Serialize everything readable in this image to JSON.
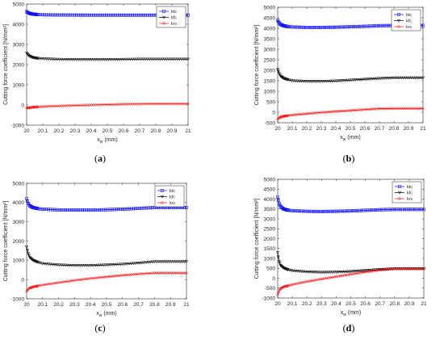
{
  "chart_data": [
    {
      "type": "line",
      "panel_label": "(a)",
      "xlabel": "x_w (mm)",
      "ylabel": "Cutting force coefficient [N/mm²]",
      "xlim": [
        20,
        21
      ],
      "ylim": [
        -1000,
        5000
      ],
      "x_ticks": [
        "20",
        "20.1",
        "20.2",
        "20.3",
        "20.4",
        "20.5",
        "20.6",
        "20.7",
        "20.8",
        "20.9",
        "21"
      ],
      "y_ticks": [
        "-1000",
        "0",
        "1000",
        "2000",
        "3000",
        "4000",
        "5000"
      ],
      "legend_position": "top-right",
      "grid": false,
      "series": [
        {
          "name": "ktc",
          "color": "#0000ff",
          "marker": "square",
          "x": [
            20.0,
            20.01,
            20.02,
            20.04,
            20.07,
            20.1,
            20.2,
            20.3,
            20.4,
            20.5,
            20.6,
            20.7,
            20.8,
            20.9,
            21.0
          ],
          "y": [
            4620,
            4570,
            4530,
            4500,
            4480,
            4470,
            4460,
            4455,
            4450,
            4450,
            4450,
            4450,
            4450,
            4450,
            4450
          ]
        },
        {
          "name": "kfc",
          "color": "#000000",
          "marker": "triangle-down",
          "x": [
            20.0,
            20.01,
            20.02,
            20.04,
            20.07,
            20.1,
            20.2,
            20.3,
            20.4,
            20.5,
            20.6,
            20.7,
            20.8,
            20.9,
            21.0
          ],
          "y": [
            2580,
            2480,
            2410,
            2350,
            2310,
            2290,
            2260,
            2250,
            2250,
            2250,
            2260,
            2270,
            2270,
            2270,
            2270
          ]
        },
        {
          "name": "krc",
          "color": "#ff0000",
          "marker": "diamond",
          "x": [
            20.0,
            20.01,
            20.02,
            20.04,
            20.07,
            20.1,
            20.2,
            20.3,
            20.4,
            20.5,
            20.6,
            20.7,
            20.8,
            20.9,
            21.0
          ],
          "y": [
            -150,
            -140,
            -130,
            -110,
            -90,
            -80,
            -50,
            -20,
            0,
            20,
            40,
            50,
            60,
            60,
            60
          ]
        }
      ]
    },
    {
      "type": "line",
      "panel_label": "(b)",
      "xlabel": "x_w (mm)",
      "ylabel": "Cutting force coefficient [N/mm²]",
      "xlim": [
        20,
        21
      ],
      "ylim": [
        -500,
        5000
      ],
      "x_ticks": [
        "20",
        "20.1",
        "20.2",
        "20.3",
        "20.4",
        "20.5",
        "20.6",
        "20.7",
        "20.8",
        "20.9",
        "21"
      ],
      "y_ticks": [
        "-500",
        "0",
        "500",
        "1000",
        "1500",
        "2000",
        "2500",
        "3000",
        "3500",
        "4000",
        "4500",
        "5000"
      ],
      "legend_position": "top-right",
      "grid": false,
      "series": [
        {
          "name": "ktc",
          "color": "#0000ff",
          "marker": "square",
          "x": [
            20.0,
            20.01,
            20.02,
            20.04,
            20.07,
            20.1,
            20.2,
            20.3,
            20.4,
            20.5,
            20.6,
            20.7,
            20.8,
            20.9,
            21.0
          ],
          "y": [
            4380,
            4250,
            4180,
            4120,
            4080,
            4060,
            4040,
            4040,
            4050,
            4070,
            4090,
            4120,
            4130,
            4130,
            4130
          ]
        },
        {
          "name": "kfc",
          "color": "#000000",
          "marker": "triangle-down",
          "x": [
            20.0,
            20.01,
            20.02,
            20.04,
            20.07,
            20.1,
            20.2,
            20.3,
            20.4,
            20.5,
            20.6,
            20.7,
            20.8,
            20.9,
            21.0
          ],
          "y": [
            2050,
            1850,
            1720,
            1620,
            1550,
            1500,
            1470,
            1470,
            1490,
            1530,
            1570,
            1610,
            1640,
            1640,
            1640
          ]
        },
        {
          "name": "krc",
          "color": "#ff0000",
          "marker": "diamond",
          "x": [
            20.0,
            20.01,
            20.02,
            20.04,
            20.07,
            20.1,
            20.2,
            20.3,
            20.4,
            20.5,
            20.6,
            20.7,
            20.8,
            20.9,
            21.0
          ],
          "y": [
            -330,
            -270,
            -230,
            -190,
            -160,
            -130,
            -70,
            -10,
            40,
            80,
            130,
            170,
            180,
            180,
            180
          ]
        }
      ]
    },
    {
      "type": "line",
      "panel_label": "(c)",
      "xlabel": "x_w (mm)",
      "ylabel": "Cutting force coefficient [N/mm²]",
      "xlim": [
        20,
        21
      ],
      "ylim": [
        -1000,
        5000
      ],
      "x_ticks": [
        "20",
        "20.1",
        "20.2",
        "20.3",
        "20.4",
        "20.5",
        "20.6",
        "20.7",
        "20.8",
        "20.9",
        "21"
      ],
      "y_ticks": [
        "-1000",
        "0",
        "1000",
        "2000",
        "3000",
        "4000",
        "5000"
      ],
      "legend_position": "top-right",
      "grid": false,
      "series": [
        {
          "name": "ktc",
          "color": "#0000ff",
          "marker": "square",
          "x": [
            20.0,
            20.01,
            20.02,
            20.04,
            20.07,
            20.1,
            20.2,
            20.3,
            20.4,
            20.5,
            20.6,
            20.7,
            20.8,
            20.9,
            21.0
          ],
          "y": [
            4200,
            3950,
            3830,
            3740,
            3690,
            3660,
            3620,
            3610,
            3610,
            3630,
            3660,
            3700,
            3740,
            3740,
            3740
          ]
        },
        {
          "name": "kfc",
          "color": "#000000",
          "marker": "triangle-down",
          "x": [
            20.0,
            20.01,
            20.02,
            20.04,
            20.07,
            20.1,
            20.2,
            20.3,
            20.4,
            20.5,
            20.6,
            20.7,
            20.8,
            20.9,
            21.0
          ],
          "y": [
            1700,
            1350,
            1150,
            1000,
            900,
            830,
            760,
            730,
            730,
            760,
            800,
            860,
            930,
            930,
            930
          ]
        },
        {
          "name": "krc",
          "color": "#ff0000",
          "marker": "diamond",
          "x": [
            20.0,
            20.01,
            20.02,
            20.04,
            20.07,
            20.1,
            20.2,
            20.3,
            20.4,
            20.5,
            20.6,
            20.7,
            20.8,
            20.9,
            21.0
          ],
          "y": [
            -620,
            -500,
            -440,
            -380,
            -330,
            -280,
            -160,
            -40,
            60,
            140,
            220,
            290,
            340,
            340,
            340
          ]
        }
      ]
    },
    {
      "type": "line",
      "panel_label": "(d)",
      "xlabel": "x_w (mm)",
      "ylabel": "Cutting force coefficient [N/mm²]",
      "xlim": [
        20,
        21
      ],
      "ylim": [
        -1000,
        5000
      ],
      "x_ticks": [
        "20",
        "20.1",
        "20.2",
        "20.3",
        "20.4",
        "20.5",
        "20.6",
        "20.7",
        "20.8",
        "20.9",
        "21"
      ],
      "y_ticks": [
        "-1000",
        "-500",
        "0",
        "500",
        "1000",
        "1500",
        "2000",
        "2500",
        "3000",
        "3500",
        "4000",
        "4500",
        "5000"
      ],
      "legend_position": "top-right",
      "grid": false,
      "series": [
        {
          "name": "ktc",
          "color": "#0000ff",
          "marker": "square",
          "x": [
            20.0,
            20.01,
            20.02,
            20.04,
            20.07,
            20.1,
            20.2,
            20.3,
            20.4,
            20.5,
            20.6,
            20.7,
            20.8,
            20.9,
            21.0
          ],
          "y": [
            4100,
            3780,
            3620,
            3500,
            3440,
            3410,
            3380,
            3370,
            3380,
            3400,
            3430,
            3460,
            3480,
            3480,
            3480
          ]
        },
        {
          "name": "kfc",
          "color": "#000000",
          "marker": "triangle-down",
          "x": [
            20.0,
            20.01,
            20.02,
            20.04,
            20.07,
            20.1,
            20.2,
            20.3,
            20.4,
            20.5,
            20.6,
            20.7,
            20.8,
            20.9,
            21.0
          ],
          "y": [
            1300,
            850,
            650,
            520,
            430,
            380,
            320,
            300,
            310,
            340,
            390,
            440,
            480,
            480,
            480
          ]
        },
        {
          "name": "krc",
          "color": "#ff0000",
          "marker": "diamond",
          "x": [
            20.0,
            20.01,
            20.02,
            20.04,
            20.07,
            20.1,
            20.2,
            20.3,
            20.4,
            20.5,
            20.6,
            20.7,
            20.8,
            20.9,
            21.0
          ],
          "y": [
            -850,
            -620,
            -520,
            -440,
            -380,
            -320,
            -170,
            -40,
            80,
            200,
            310,
            410,
            470,
            470,
            470
          ]
        }
      ]
    }
  ]
}
